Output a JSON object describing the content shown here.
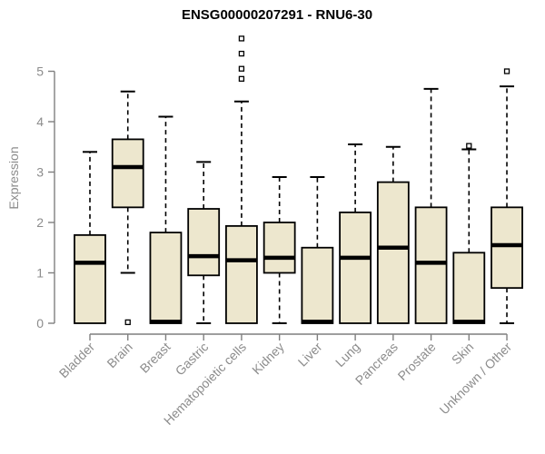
{
  "figure": {
    "window_title": "Gene expression boxplot"
  },
  "chart_data": {
    "type": "boxplot",
    "title": "ENSG00000207291 - RNU6-30",
    "xlabel": "",
    "ylabel": "Expression",
    "ylim": [
      0,
      5.8
    ],
    "yticks": [
      "0",
      "1",
      "2",
      "3",
      "4",
      "5"
    ],
    "grid": false,
    "legend": false,
    "categories": [
      "Bladder",
      "Brain",
      "Breast",
      "Gastric",
      "Hematopoietic cells",
      "Kidney",
      "Liver",
      "Lung",
      "Pancreas",
      "Prostate",
      "Skin",
      "Unknown / Other"
    ],
    "boxes": [
      {
        "category": "Bladder",
        "min": 0,
        "q1": 0,
        "median": 1.2,
        "q3": 1.75,
        "max": 3.4,
        "outliers": []
      },
      {
        "category": "Brain",
        "min": 1.0,
        "q1": 2.3,
        "median": 3.1,
        "q3": 3.65,
        "max": 4.6,
        "outliers": [
          0.02
        ]
      },
      {
        "category": "Breast",
        "min": 0,
        "q1": 0,
        "median": 0.03,
        "q3": 1.8,
        "max": 4.1,
        "outliers": []
      },
      {
        "category": "Gastric",
        "min": 0,
        "q1": 0.95,
        "median": 1.33,
        "q3": 2.27,
        "max": 3.2,
        "outliers": []
      },
      {
        "category": "Hematopoietic cells",
        "min": 0,
        "q1": 0,
        "median": 1.25,
        "q3": 1.93,
        "max": 4.4,
        "outliers": [
          4.85,
          5.05,
          5.35,
          5.65
        ]
      },
      {
        "category": "Kidney",
        "min": 0,
        "q1": 1.0,
        "median": 1.3,
        "q3": 2.0,
        "max": 2.9,
        "outliers": []
      },
      {
        "category": "Liver",
        "min": 0,
        "q1": 0,
        "median": 0.03,
        "q3": 1.5,
        "max": 2.9,
        "outliers": []
      },
      {
        "category": "Lung",
        "min": 0,
        "q1": 0,
        "median": 1.3,
        "q3": 2.2,
        "max": 3.55,
        "outliers": []
      },
      {
        "category": "Pancreas",
        "min": 0,
        "q1": 0,
        "median": 1.5,
        "q3": 2.8,
        "max": 3.5,
        "outliers": []
      },
      {
        "category": "Prostate",
        "min": 0,
        "q1": 0,
        "median": 1.2,
        "q3": 2.3,
        "max": 4.65,
        "outliers": []
      },
      {
        "category": "Skin",
        "min": 0,
        "q1": 0,
        "median": 0.03,
        "q3": 1.4,
        "max": 3.45,
        "outliers": [
          3.52
        ]
      },
      {
        "category": "Unknown / Other",
        "min": 0,
        "q1": 0.7,
        "median": 1.55,
        "q3": 2.3,
        "max": 4.7,
        "outliers": [
          5.0
        ]
      }
    ],
    "colors": {
      "box_fill": "#EDE7CE",
      "box_border": "#000000",
      "median": "#000000",
      "whisker": "#000000",
      "axis": "#7f7f7f",
      "tick_label": "#8c8c8c",
      "title": "#000000",
      "background": "#ffffff"
    }
  }
}
